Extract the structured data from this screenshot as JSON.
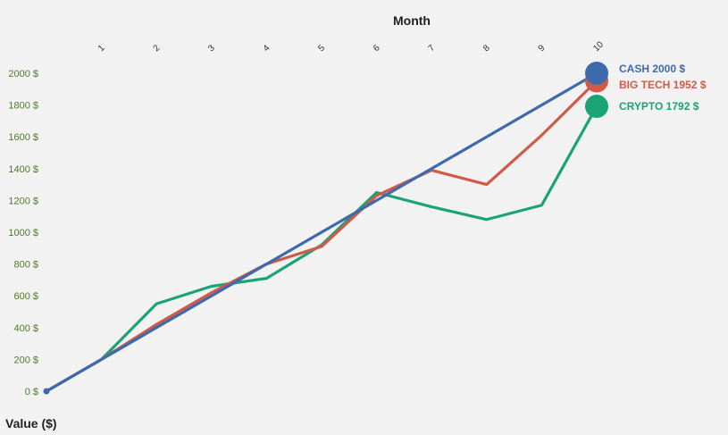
{
  "chart_data": {
    "type": "line",
    "xlabel": "Month",
    "ylabel": "Value ($)",
    "x": [
      0,
      1,
      2,
      3,
      4,
      5,
      6,
      7,
      8,
      9,
      10
    ],
    "x_tick_labels": [
      "1",
      "2",
      "3",
      "4",
      "5",
      "6",
      "7",
      "8",
      "9",
      "10"
    ],
    "y_tick_labels": [
      "0 $",
      "200 $",
      "400 $",
      "600 $",
      "800 $",
      "1000 $",
      "1200 $",
      "1400 $",
      "1600 $",
      "1800 $",
      "2000 $"
    ],
    "y_ticks": [
      0,
      200,
      400,
      600,
      800,
      1000,
      1200,
      1400,
      1600,
      1800,
      2000
    ],
    "xlim": [
      0,
      10
    ],
    "ylim": [
      0,
      2000
    ],
    "x_axis_position": "top",
    "grid": false,
    "legend": "none",
    "series": [
      {
        "name": "CASH",
        "color": "#3d6aac",
        "values": [
          0,
          200,
          400,
          600,
          800,
          1000,
          1200,
          1400,
          1600,
          1800,
          2000
        ],
        "end_label": "CASH 2000 $"
      },
      {
        "name": "BIG TECH",
        "color": "#d05a47",
        "values": [
          0,
          200,
          420,
          620,
          800,
          910,
          1230,
          1390,
          1300,
          1610,
          1952
        ],
        "end_label": "BIG TECH 1952 $"
      },
      {
        "name": "CRYPTO",
        "color": "#1aa374",
        "values": [
          0,
          200,
          550,
          660,
          710,
          920,
          1250,
          1160,
          1080,
          1170,
          1792
        ],
        "end_label": "CRYPTO 1792 $"
      }
    ]
  }
}
